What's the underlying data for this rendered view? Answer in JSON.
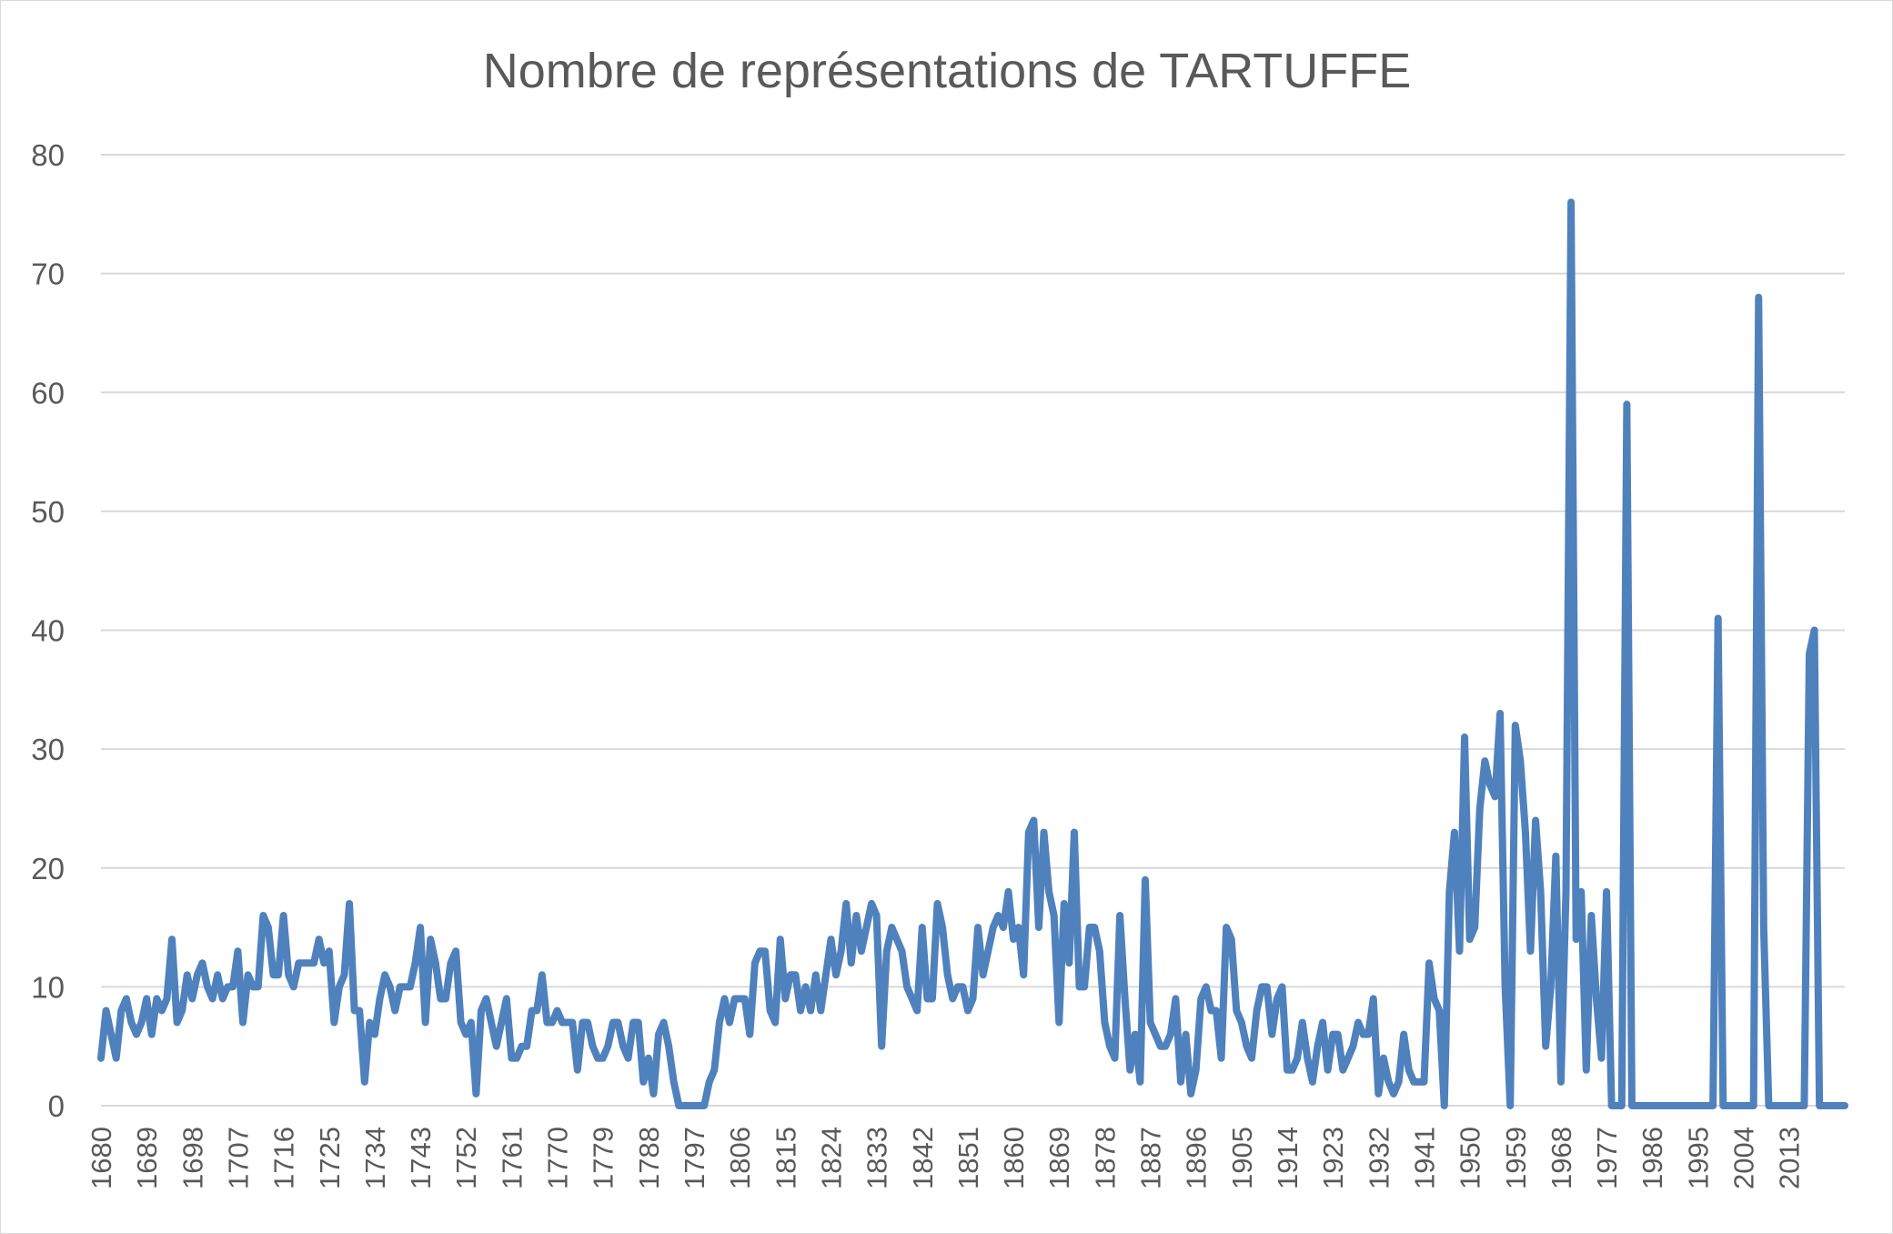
{
  "chart_data": {
    "type": "line",
    "title": "Nombre de représentations de TARTUFFE",
    "xlabel": "",
    "ylabel": "",
    "x_start": 1680,
    "x_end": 2021,
    "ylim": [
      0,
      80
    ],
    "y_ticks": [
      0,
      10,
      20,
      30,
      40,
      50,
      60,
      70,
      80
    ],
    "x_tick_labels": [
      "1680",
      "1689",
      "1698",
      "1707",
      "1716",
      "1725",
      "1734",
      "1743",
      "1752",
      "1761",
      "1770",
      "1779",
      "1788",
      "1797",
      "1806",
      "1815",
      "1824",
      "1833",
      "1842",
      "1851",
      "1860",
      "1869",
      "1878",
      "1887",
      "1896",
      "1905",
      "1914",
      "1923",
      "1932",
      "1941",
      "1950",
      "1959",
      "1968",
      "1977",
      "1986",
      "1995",
      "2004",
      "2013"
    ],
    "grid": true,
    "legend": "none",
    "series": [
      {
        "name": "Nombre de représentations",
        "color": "#4f81bd",
        "values": [
          4,
          8,
          6,
          4,
          8,
          9,
          7,
          6,
          7,
          9,
          6,
          9,
          8,
          9,
          14,
          7,
          8,
          11,
          9,
          11,
          12,
          10,
          9,
          11,
          9,
          10,
          10,
          13,
          7,
          11,
          10,
          10,
          16,
          15,
          11,
          11,
          16,
          11,
          10,
          12,
          12,
          12,
          12,
          14,
          12,
          13,
          7,
          10,
          11,
          17,
          8,
          8,
          2,
          7,
          6,
          9,
          11,
          10,
          8,
          10,
          10,
          10,
          12,
          15,
          7,
          14,
          12,
          9,
          9,
          12,
          13,
          7,
          6,
          7,
          1,
          8,
          9,
          7,
          5,
          7,
          9,
          4,
          4,
          5,
          5,
          8,
          8,
          11,
          7,
          7,
          8,
          7,
          7,
          7,
          3,
          7,
          7,
          5,
          4,
          4,
          5,
          7,
          7,
          5,
          4,
          7,
          7,
          2,
          4,
          1,
          6,
          7,
          5,
          2,
          0,
          0,
          0,
          0,
          0,
          0,
          2,
          3,
          7,
          9,
          7,
          9,
          9,
          9,
          6,
          12,
          13,
          13,
          8,
          7,
          14,
          9,
          11,
          11,
          8,
          10,
          8,
          11,
          8,
          11,
          14,
          11,
          13,
          17,
          12,
          16,
          13,
          15,
          17,
          16,
          5,
          13,
          15,
          14,
          13,
          10,
          9,
          8,
          15,
          9,
          9,
          17,
          15,
          11,
          9,
          10,
          10,
          8,
          9,
          15,
          11,
          13,
          15,
          16,
          15,
          18,
          14,
          15,
          11,
          23,
          24,
          15,
          23,
          18,
          16,
          7,
          17,
          12,
          23,
          10,
          10,
          15,
          15,
          13,
          7,
          5,
          4,
          16,
          9,
          3,
          6,
          2,
          19,
          7,
          6,
          5,
          5,
          6,
          9,
          2,
          6,
          1,
          3,
          9,
          10,
          8,
          8,
          4,
          15,
          14,
          8,
          7,
          5,
          4,
          8,
          10,
          10,
          6,
          9,
          10,
          3,
          3,
          4,
          7,
          4,
          2,
          5,
          7,
          3,
          6,
          6,
          3,
          4,
          5,
          7,
          6,
          6,
          9,
          1,
          4,
          2,
          1,
          2,
          6,
          3,
          2,
          2,
          2,
          12,
          9,
          8,
          0,
          18,
          23,
          13,
          31,
          14,
          15,
          25,
          29,
          27,
          26,
          33,
          10,
          0,
          32,
          29,
          23,
          13,
          24,
          18,
          5,
          10,
          21,
          2,
          18,
          76,
          14,
          18,
          3,
          16,
          9,
          4,
          18,
          0,
          0,
          0,
          59,
          0,
          0,
          0,
          0,
          0,
          0,
          0,
          0,
          0,
          0,
          0,
          0,
          0,
          0,
          0,
          0,
          0,
          41,
          0,
          0,
          0,
          0,
          0,
          0,
          0,
          68,
          15,
          0,
          0,
          0,
          0,
          0,
          0,
          0,
          0,
          38,
          40,
          0,
          0,
          0,
          0,
          0,
          0
        ]
      }
    ]
  }
}
